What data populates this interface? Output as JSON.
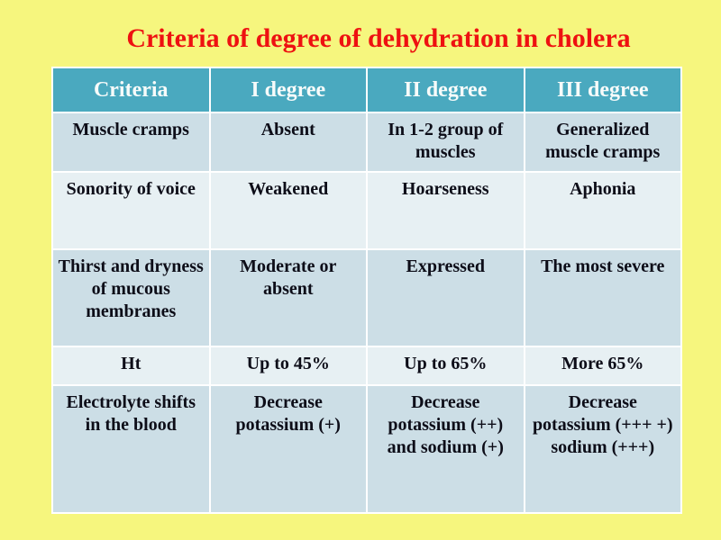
{
  "slide": {
    "title": "Criteria of degree of dehydration in cholera",
    "title_color": "#ee1111",
    "background_color": "#f6f67e"
  },
  "table": {
    "colors": {
      "header_background": "#4aa9bf",
      "header_text": "#f7fbfa",
      "row_dark_background": "#ccdee6",
      "row_light_background": "#e7f0f3",
      "cell_text": "#0d0d18",
      "grid_lines": "#ffffff"
    },
    "columns": [
      "Criteria",
      "I degree",
      "II degree",
      "III degree"
    ],
    "rows": [
      {
        "cells": [
          "Muscle cramps",
          "Absent",
          "In 1-2 group of muscles",
          "Generalized muscle cramps"
        ]
      },
      {
        "cells": [
          "Sonority of voice",
          "Weakened",
          "Hoarseness",
          "Aphonia"
        ]
      },
      {
        "cells": [
          "Thirst and dryness of mucous membranes",
          "Moderate or absent",
          "Expressed",
          "The most severe"
        ]
      },
      {
        "cells": [
          "Ht",
          "Up to 45%",
          "Up to 65%",
          "More 65%"
        ]
      },
      {
        "cells": [
          "Electrolyte shifts in the blood",
          "Decrease potassium (+)",
          "Decrease potassium (++) and sodium (+)",
          "Decrease potassium (+++ +)\nsodium (+++)"
        ]
      }
    ]
  }
}
